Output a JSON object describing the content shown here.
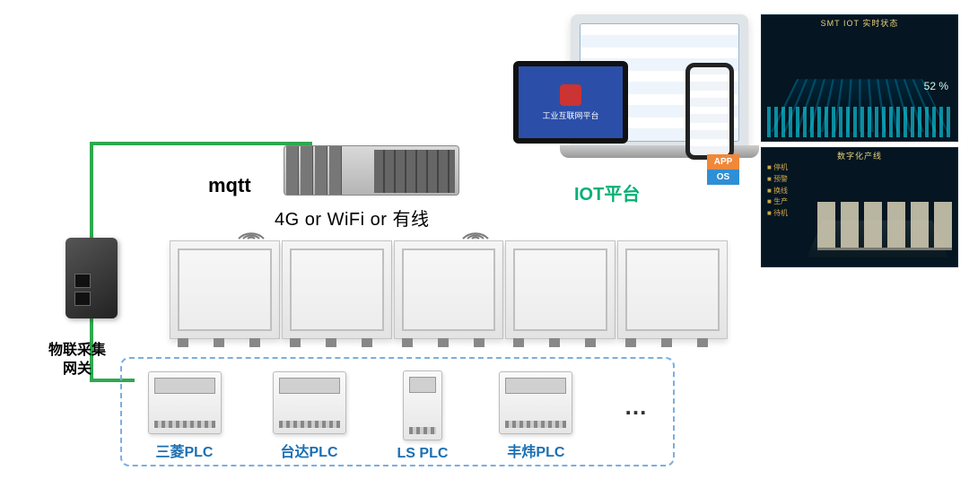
{
  "colors": {
    "connector": "#2fa84f",
    "plc_border": "#7baee0",
    "plc_label": "#1a6fb3",
    "iot_label": "#05b075",
    "dashboard_bg": "#051522",
    "dashboard_title": "#e6d27a"
  },
  "gateway": {
    "label": "物联采集\n网关"
  },
  "mqtt": {
    "label": "mqtt"
  },
  "connection": {
    "label": "4G or WiFi or 有线"
  },
  "prodline": {
    "machine_count": 5
  },
  "plcs": {
    "items": [
      {
        "label": "三菱PLC"
      },
      {
        "label": "台达PLC"
      },
      {
        "label": "LS PLC"
      },
      {
        "label": "丰炜PLC"
      }
    ],
    "more": "…"
  },
  "iot": {
    "label": "IOT平台",
    "tablet_text": "工业互联网平台",
    "app_badge": {
      "top": "APP",
      "top_bg": "#f0883a",
      "bottom": "OS",
      "bottom_bg": "#2f8fd6"
    }
  },
  "dashboards": {
    "top": {
      "title": "SMT IOT  实时状态",
      "pct": "52 %"
    },
    "bottom": {
      "title": "数字化产线",
      "legend": [
        "停机",
        "预警",
        "换线",
        "生产",
        "待机"
      ]
    }
  }
}
